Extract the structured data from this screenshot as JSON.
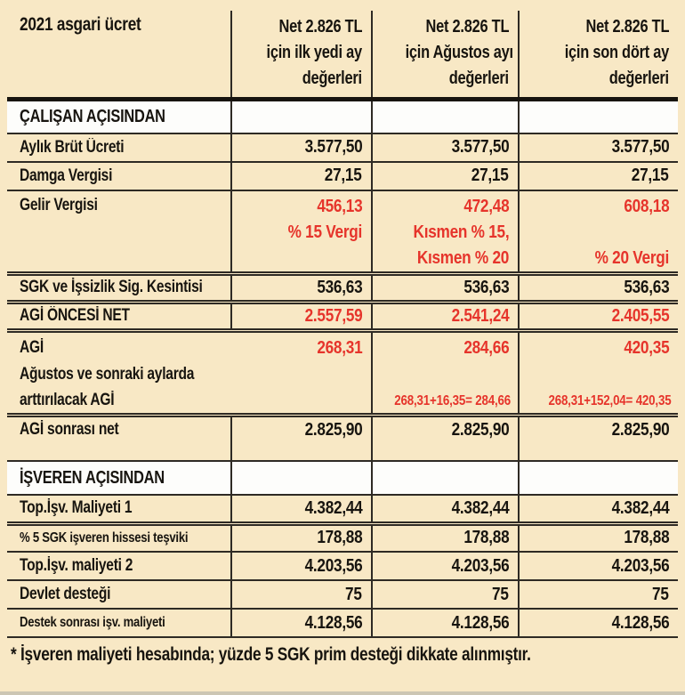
{
  "page": {
    "colors": {
      "background": "#f8e8c5",
      "accent_red": "#e6342b",
      "text_dark": "#17140f",
      "grid_line": "#2e2a24",
      "section_row": "#fdfdfb"
    },
    "footnote": "* İşveren maliyeti hesabında; yüzde 5 SGK prim desteği dikkate alınmıştır."
  },
  "table": {
    "header": {
      "title": "2021 asgari ücret",
      "columns": [
        {
          "lines": [
            "Net 2.826 TL",
            "için ilk yedi ay",
            "değerleri"
          ]
        },
        {
          "lines": [
            "Net 2.826 TL",
            "için Ağustos ayı",
            "değerleri"
          ]
        },
        {
          "lines": [
            "Net 2.826 TL",
            "için son dört ay",
            "değerleri"
          ]
        }
      ]
    },
    "rows": [
      {
        "kind": "section",
        "label": "ÇALIŞAN AÇISINDAN"
      },
      {
        "kind": "data",
        "label": "Aylık Brüt Ücreti",
        "value_color": "dark",
        "values": [
          "3.577,50",
          "3.577,50",
          "3.577,50"
        ]
      },
      {
        "kind": "data",
        "label": "Damga Vergisi",
        "value_color": "dark",
        "values": [
          "27,15",
          "27,15",
          "27,15"
        ]
      },
      {
        "kind": "multiline",
        "label": "Gelir Vergisi",
        "value_color": "red",
        "cells": [
          {
            "lines": [
              "456,13",
              "% 15 Vergi",
              ""
            ]
          },
          {
            "lines": [
              "472,48",
              "Kısmen % 15,",
              "Kısmen % 20"
            ]
          },
          {
            "lines": [
              "608,18",
              "",
              "% 20 Vergi"
            ]
          }
        ]
      },
      {
        "kind": "data",
        "label": "SGK ve İşsizlik Sig. Kesintisi",
        "value_color": "dark",
        "sep_above": "double",
        "values": [
          "536,63",
          "536,63",
          "536,63"
        ]
      },
      {
        "kind": "data",
        "label": "AGİ ÖNCESİ NET",
        "value_color": "red",
        "sep_above": "double",
        "values": [
          "2.557,59",
          "2.541,24",
          "2.405,55"
        ]
      },
      {
        "kind": "agi",
        "label": "AGİ",
        "sublabel_lines": [
          "Ağustos ve sonraki aylarda",
          "arttırılacak AGİ"
        ],
        "value_color": "red",
        "values": [
          "268,31",
          "284,66",
          "420,35"
        ],
        "formulas": [
          "",
          "268,31+16,35= 284,66",
          "268,31+152,04= 420,35"
        ]
      },
      {
        "kind": "data",
        "label": "AGİ sonrası net",
        "value_color": "dark",
        "sep_above": "double",
        "values": [
          "2.825,90",
          "2.825,90",
          "2.825,90"
        ]
      },
      {
        "kind": "spacer"
      },
      {
        "kind": "section",
        "label": "İŞVEREN AÇISINDAN"
      },
      {
        "kind": "data",
        "label": "Top.İşv. Maliyeti 1",
        "value_color": "dark",
        "values": [
          "4.382,44",
          "4.382,44",
          "4.382,44"
        ]
      },
      {
        "kind": "data",
        "label": "% 5 SGK işveren hissesi teşviki",
        "value_color": "dark",
        "small_label": true,
        "sep_above": "double",
        "values": [
          "178,88",
          "178,88",
          "178,88"
        ]
      },
      {
        "kind": "data",
        "label": "Top.İşv. maliyeti 2",
        "value_color": "dark",
        "values": [
          "4.203,56",
          "4.203,56",
          "4.203,56"
        ]
      },
      {
        "kind": "data",
        "label": "Devlet desteği",
        "value_color": "dark",
        "values": [
          "75",
          "75",
          "75"
        ]
      },
      {
        "kind": "data",
        "label": "Destek sonrası işv. maliyeti",
        "value_color": "dark",
        "small_label": true,
        "values": [
          "4.128,56",
          "4.128,56",
          "4.128,56"
        ]
      }
    ]
  },
  "chart_data": {
    "type": "table",
    "title": "2021 asgari ücret",
    "columns": [
      "2021 asgari ücret",
      "Net 2.826 TL için ilk yedi ay değerleri",
      "Net 2.826 TL için Ağustos ayı değerleri",
      "Net 2.826 TL için son dört ay değerleri"
    ],
    "sections": [
      {
        "section": "ÇALIŞAN AÇISINDAN",
        "rows": [
          [
            "Aylık Brüt Ücreti",
            "3.577,50",
            "3.577,50",
            "3.577,50"
          ],
          [
            "Damga Vergisi",
            "27,15",
            "27,15",
            "27,15"
          ],
          [
            "Gelir Vergisi",
            "456,13 (% 15 Vergi)",
            "472,48 (Kısmen % 15, Kısmen % 20)",
            "608,18 (% 20 Vergi)"
          ],
          [
            "SGK ve İşsizlik Sig. Kesintisi",
            "536,63",
            "536,63",
            "536,63"
          ],
          [
            "AGİ ÖNCESİ NET",
            "2.557,59",
            "2.541,24",
            "2.405,55"
          ],
          [
            "AGİ (Ağustos ve sonraki aylarda arttırılacak AGİ)",
            "268,31",
            "284,66 (268,31+16,35= 284,66)",
            "420,35 (268,31+152,04= 420,35)"
          ],
          [
            "AGİ sonrası net",
            "2.825,90",
            "2.825,90",
            "2.825,90"
          ]
        ]
      },
      {
        "section": "İŞVEREN AÇISINDAN",
        "rows": [
          [
            "Top.İşv. Maliyeti 1",
            "4.382,44",
            "4.382,44",
            "4.382,44"
          ],
          [
            "% 5 SGK işveren hissesi teşviki",
            "178,88",
            "178,88",
            "178,88"
          ],
          [
            "Top.İşv. maliyeti 2",
            "4.203,56",
            "4.203,56",
            "4.203,56"
          ],
          [
            "Devlet desteği",
            "75",
            "75",
            "75"
          ],
          [
            "Destek sonrası işv. maliyeti",
            "4.128,56",
            "4.128,56",
            "4.128,56"
          ]
        ]
      }
    ],
    "footnote": "* İşveren maliyeti hesabında; yüzde 5 SGK prim desteği dikkate alınmıştır."
  }
}
